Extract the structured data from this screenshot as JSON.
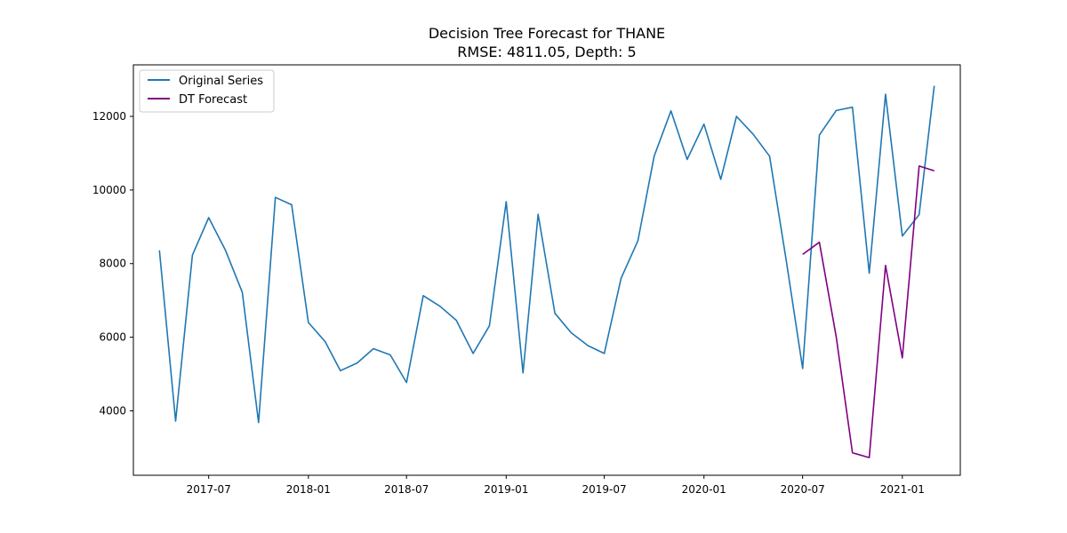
{
  "chart_data": {
    "type": "line",
    "title": "Decision Tree Forecast for THANE",
    "subtitle": "RMSE: 4811.05, Depth: 5",
    "xlabel": "",
    "ylabel": "",
    "xlim": [
      "2017-02-12",
      "2021-04-18"
    ],
    "ylim": [
      2250,
      13400
    ],
    "grid": false,
    "legend_position": "top-left",
    "x_ticks": [
      {
        "date": "2017-07-01",
        "label": "2017-07"
      },
      {
        "date": "2018-01-01",
        "label": "2018-01"
      },
      {
        "date": "2018-07-01",
        "label": "2018-07"
      },
      {
        "date": "2019-01-01",
        "label": "2019-01"
      },
      {
        "date": "2019-07-01",
        "label": "2019-07"
      },
      {
        "date": "2020-01-01",
        "label": "2020-01"
      },
      {
        "date": "2020-07-01",
        "label": "2020-07"
      },
      {
        "date": "2021-01-01",
        "label": "2021-01"
      }
    ],
    "y_ticks": [
      4000,
      6000,
      8000,
      10000,
      12000
    ],
    "series": [
      {
        "name": "Original Series",
        "color": "#1f77b4",
        "points": [
          [
            "2017-04-01",
            8360
          ],
          [
            "2017-05-01",
            3720
          ],
          [
            "2017-06-01",
            8230
          ],
          [
            "2017-07-01",
            9250
          ],
          [
            "2017-08-01",
            8360
          ],
          [
            "2017-09-01",
            7220
          ],
          [
            "2017-10-01",
            3680
          ],
          [
            "2017-11-01",
            9800
          ],
          [
            "2017-12-01",
            9600
          ],
          [
            "2018-01-01",
            6400
          ],
          [
            "2018-02-01",
            5880
          ],
          [
            "2018-03-01",
            5090
          ],
          [
            "2018-04-01",
            5300
          ],
          [
            "2018-05-01",
            5690
          ],
          [
            "2018-06-01",
            5520
          ],
          [
            "2018-07-01",
            4770
          ],
          [
            "2018-08-01",
            7130
          ],
          [
            "2018-09-01",
            6840
          ],
          [
            "2018-10-01",
            6460
          ],
          [
            "2018-11-01",
            5560
          ],
          [
            "2018-12-01",
            6310
          ],
          [
            "2019-01-01",
            9680
          ],
          [
            "2019-02-01",
            5030
          ],
          [
            "2019-03-01",
            9340
          ],
          [
            "2019-04-01",
            6650
          ],
          [
            "2019-05-01",
            6120
          ],
          [
            "2019-06-01",
            5770
          ],
          [
            "2019-07-01",
            5560
          ],
          [
            "2019-08-01",
            7600
          ],
          [
            "2019-09-01",
            8620
          ],
          [
            "2019-10-01",
            10920
          ],
          [
            "2019-11-01",
            12150
          ],
          [
            "2019-12-01",
            10830
          ],
          [
            "2020-01-01",
            11790
          ],
          [
            "2020-02-01",
            10290
          ],
          [
            "2020-03-01",
            12000
          ],
          [
            "2020-04-01",
            11510
          ],
          [
            "2020-05-01",
            10920
          ],
          [
            "2020-06-01",
            8060
          ],
          [
            "2020-07-01",
            5150
          ],
          [
            "2020-08-01",
            11490
          ],
          [
            "2020-09-01",
            12160
          ],
          [
            "2020-10-01",
            12250
          ],
          [
            "2020-11-01",
            7740
          ],
          [
            "2020-12-01",
            12600
          ],
          [
            "2021-01-01",
            8750
          ],
          [
            "2021-02-01",
            9330
          ],
          [
            "2021-03-01",
            12830
          ]
        ]
      },
      {
        "name": "DT Forecast",
        "color": "#800080",
        "points": [
          [
            "2020-07-01",
            8250
          ],
          [
            "2020-08-01",
            8580
          ],
          [
            "2020-09-01",
            6020
          ],
          [
            "2020-10-01",
            2860
          ],
          [
            "2020-11-01",
            2730
          ],
          [
            "2020-12-01",
            7950
          ],
          [
            "2021-01-01",
            5440
          ],
          [
            "2021-02-01",
            10650
          ],
          [
            "2021-03-01",
            10520
          ]
        ]
      }
    ]
  }
}
